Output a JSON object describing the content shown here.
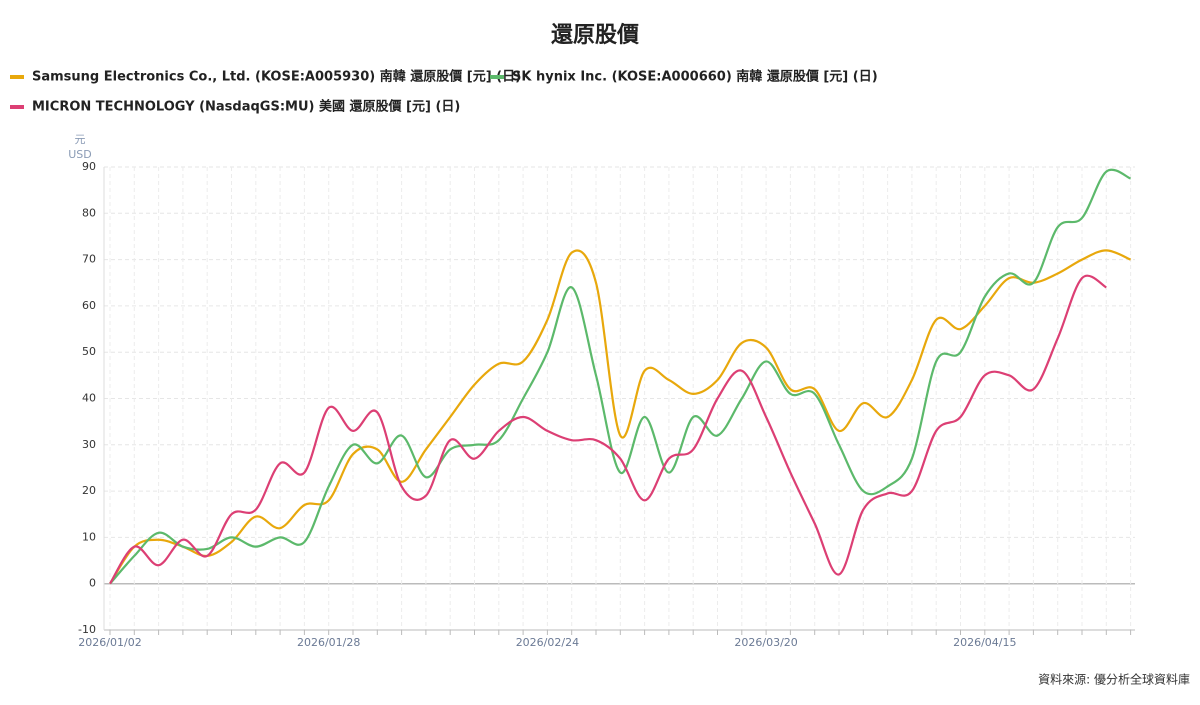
{
  "chart_data": {
    "type": "line",
    "title": "還原股價",
    "y_unit": "元",
    "y_unit2": "USD",
    "source": "資料來源: 優分析全球資料庫",
    "categories": [
      "2026/01/02",
      null,
      null,
      null,
      null,
      null,
      null,
      null,
      null,
      "2026/01/28",
      null,
      null,
      null,
      null,
      null,
      null,
      null,
      null,
      "2026/02/24",
      null,
      null,
      null,
      null,
      null,
      null,
      null,
      null,
      "2026/03/20",
      null,
      null,
      null,
      null,
      null,
      null,
      null,
      null,
      "2026/04/15",
      null,
      null,
      null,
      null,
      null,
      null
    ],
    "ylim": [
      -10,
      90
    ],
    "yticks": [
      -10,
      0,
      10,
      20,
      30,
      40,
      50,
      60,
      70,
      80,
      90
    ],
    "grid": true,
    "series": [
      {
        "name": "Samsung Electronics Co., Ltd. (KOSE:A005930) 南韓 還原股價 [元] (日)",
        "color": "#e8a80c",
        "values": [
          0,
          8,
          9.5,
          8,
          6,
          9,
          14.5,
          12,
          17,
          18,
          28,
          29,
          22,
          29,
          36,
          43,
          47.5,
          48,
          57,
          71.5,
          65,
          32,
          46,
          44,
          41,
          44,
          52,
          51,
          42,
          42,
          33,
          39,
          36,
          44,
          57,
          55,
          60,
          66,
          65,
          67,
          70,
          72,
          70
        ]
      },
      {
        "name": "SK hynix Inc. (KOSE:A000660) 南韓 還原股價 [元] (日)",
        "color": "#5cb96b",
        "values": [
          0,
          6,
          11,
          8,
          7.5,
          10,
          8,
          10,
          9,
          21,
          30,
          26,
          32,
          23,
          29,
          30,
          31,
          40,
          50,
          64,
          45,
          24,
          36,
          24,
          36,
          32,
          40,
          48,
          41,
          41,
          30,
          20,
          21,
          27,
          48,
          50,
          62,
          67,
          65,
          77,
          79,
          89,
          87.5
        ]
      },
      {
        "name": "MICRON TECHNOLOGY (NasdaqGS:MU) 美國 還原股價 [元] (日)",
        "color": "#dc3f74",
        "values": [
          0,
          8,
          4,
          9.5,
          6,
          15,
          16,
          26,
          24,
          38,
          33,
          37,
          21,
          19,
          31,
          27,
          33,
          36,
          33,
          31,
          31,
          27,
          18,
          27,
          29,
          40,
          46,
          36,
          24,
          13,
          2,
          16,
          19.5,
          20,
          33,
          36,
          45,
          45,
          42,
          53,
          66,
          64,
          null
        ]
      }
    ]
  }
}
